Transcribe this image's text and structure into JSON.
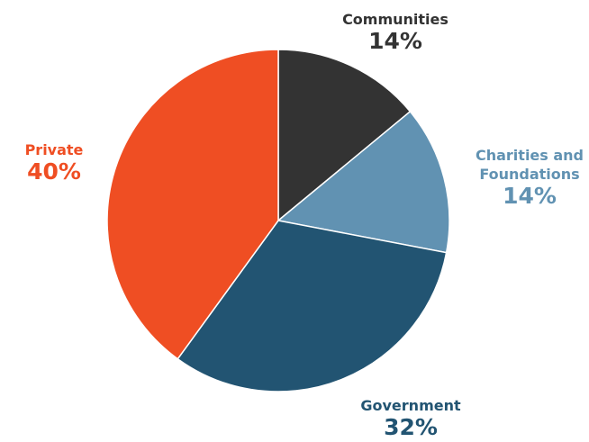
{
  "chart_data": {
    "type": "pie",
    "title": "",
    "slices": [
      {
        "label_lines": [
          "Communities"
        ],
        "value": 14,
        "value_label": "14%",
        "color": "#333333",
        "text_color": "#333333"
      },
      {
        "label_lines": [
          "Charities and",
          "Foundations"
        ],
        "value": 14,
        "value_label": "14%",
        "color": "#6192b2",
        "text_color": "#6192b2"
      },
      {
        "label_lines": [
          "Government"
        ],
        "value": 32,
        "value_label": "32%",
        "color": "#225472",
        "text_color": "#225472"
      },
      {
        "label_lines": [
          "Private"
        ],
        "value": 40,
        "value_label": "40%",
        "color": "#ef4e23",
        "text_color": "#ef4e23"
      }
    ],
    "start_angle_deg": 0,
    "direction": "clockwise",
    "legend": "none",
    "slice_border_color": "#ffffff"
  }
}
